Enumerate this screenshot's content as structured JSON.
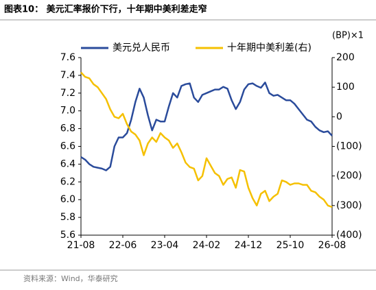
{
  "chart_data": {
    "type": "line",
    "title": "图表10：  美元汇率报价下行，十年期中美利差走窄",
    "source": "资料来源：Wind，华泰研究",
    "y2_unit": "(BP)×1",
    "categories": [
      "21-08",
      null,
      null,
      null,
      null,
      null,
      null,
      null,
      null,
      null,
      "22-06",
      null,
      null,
      null,
      null,
      null,
      null,
      null,
      null,
      null,
      "23-04",
      null,
      null,
      null,
      null,
      null,
      null,
      null,
      null,
      null,
      "24-02",
      null,
      null,
      null,
      null,
      null,
      null,
      null,
      null,
      null,
      "24-12",
      null,
      null,
      null,
      null,
      null,
      null,
      null,
      null,
      null,
      "25-10",
      null,
      null,
      null,
      null,
      null,
      null,
      null,
      null,
      null,
      "26-08"
    ],
    "series": [
      {
        "name": "美元兑人民币",
        "color": "#2a4b9b",
        "axis": "y",
        "values": [
          6.48,
          6.45,
          6.4,
          6.37,
          6.36,
          6.35,
          6.33,
          6.37,
          6.6,
          6.7,
          6.7,
          6.75,
          6.9,
          7.1,
          7.25,
          7.15,
          6.95,
          6.78,
          6.9,
          6.88,
          6.88,
          7.05,
          7.2,
          7.15,
          7.28,
          7.3,
          7.31,
          7.15,
          7.1,
          7.18,
          7.2,
          7.22,
          7.24,
          7.24,
          7.27,
          7.25,
          7.12,
          7.02,
          7.1,
          7.24,
          7.3,
          7.31,
          7.28,
          7.26,
          7.32,
          7.2,
          7.17,
          7.18,
          7.15,
          7.12,
          7.12,
          7.08,
          7.02,
          6.96,
          6.9,
          6.88,
          6.82,
          6.78,
          6.76,
          6.77,
          6.72
        ]
      },
      {
        "name": "十年期中美利差(右)",
        "color": "#f5c000",
        "axis": "y2",
        "values": [
          150,
          135,
          130,
          110,
          100,
          80,
          60,
          25,
          0,
          -5,
          10,
          -25,
          -50,
          -60,
          -80,
          -130,
          -90,
          -70,
          -85,
          -55,
          -70,
          -80,
          -105,
          -90,
          -120,
          -155,
          -170,
          -175,
          -215,
          -200,
          -140,
          -165,
          -190,
          -200,
          -230,
          -210,
          -205,
          -240,
          -180,
          -185,
          -240,
          -275,
          -300,
          -260,
          -250,
          -285,
          -270,
          -260,
          -215,
          -220,
          -230,
          -225,
          -225,
          -230,
          -230,
          -250,
          -255,
          -270,
          -280,
          -300,
          -305
        ]
      }
    ],
    "ylim": [
      5.6,
      7.6
    ],
    "yticks": [
      5.6,
      5.8,
      {
        "value": 6,
        "label": "6.0"
      },
      6.2,
      6.4,
      6.6,
      6.8,
      {
        "value": 7,
        "label": "7.0"
      },
      7.2,
      7.4,
      7.6
    ],
    "y2lim": [
      -400,
      200
    ],
    "y2ticks": [
      {
        "value": -400,
        "label": "(400)"
      },
      {
        "value": -300,
        "label": "(300)"
      },
      {
        "value": -200,
        "label": "(200)"
      },
      {
        "value": -100,
        "label": "(100)"
      },
      0,
      100,
      200
    ],
    "grid": false,
    "legend": "top"
  }
}
